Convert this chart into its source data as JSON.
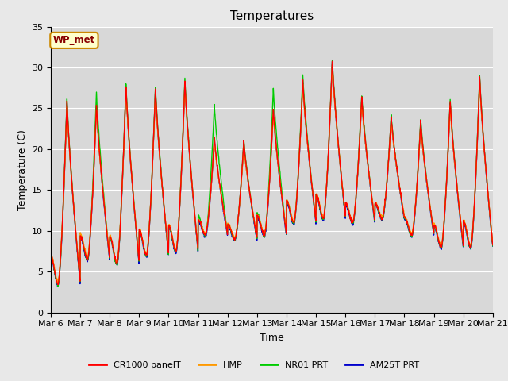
{
  "title": "Temperatures",
  "ylabel": "Temperature (C)",
  "xlabel": "Time",
  "ylim": [
    0,
    35
  ],
  "yticks": [
    0,
    5,
    10,
    15,
    20,
    25,
    30,
    35
  ],
  "x_tick_labels": [
    "Mar 6",
    "Mar 7",
    "Mar 8",
    "Mar 9",
    "Mar 10",
    "Mar 11",
    "Mar 12",
    "Mar 13",
    "Mar 14",
    "Mar 15",
    "Mar 16",
    "Mar 17",
    "Mar 18",
    "Mar 19",
    "Mar 20",
    "Mar 21"
  ],
  "annotation_text": "WP_met",
  "annotation_bg": "#ffffcc",
  "annotation_border": "#cc8800",
  "annotation_text_color": "#880000",
  "series_colors": [
    "#ff0000",
    "#ff9900",
    "#00cc00",
    "#0000cc"
  ],
  "series_labels": [
    "CR1000 panelT",
    "HMP",
    "NR01 PRT",
    "AM25T PRT"
  ],
  "line_width": 1.0,
  "plot_bg_color": "#d8d8d8",
  "grid_color": "#ffffff",
  "title_fontsize": 11,
  "axis_fontsize": 9,
  "tick_fontsize": 8,
  "legend_fontsize": 8,
  "daily_min": [
    3.5,
    6.5,
    6.0,
    7.0,
    7.5,
    9.5,
    9.0,
    9.5,
    11.0,
    11.5,
    11.0,
    11.5,
    9.5,
    8.0,
    8.0
  ],
  "daily_max": [
    26.0,
    25.5,
    28.0,
    27.5,
    28.5,
    21.5,
    21.0,
    25.0,
    28.5,
    31.0,
    26.5,
    24.0,
    23.5,
    26.0,
    29.0
  ],
  "daily_min2": [
    3.8,
    6.8,
    6.2,
    7.2,
    7.7,
    9.7,
    9.2,
    9.7,
    11.2,
    11.7,
    11.2,
    11.7,
    9.7,
    8.2,
    8.2
  ],
  "daily_max2": [
    25.5,
    25.0,
    27.5,
    27.0,
    28.0,
    21.0,
    20.5,
    24.5,
    28.0,
    30.5,
    26.0,
    23.5,
    23.0,
    25.5,
    28.5
  ],
  "daily_min3": [
    3.4,
    6.4,
    5.9,
    6.9,
    7.4,
    9.4,
    8.9,
    9.4,
    10.9,
    11.4,
    10.9,
    11.4,
    9.4,
    7.9,
    7.9
  ],
  "daily_max3": [
    26.2,
    27.0,
    28.2,
    27.8,
    28.8,
    25.5,
    21.2,
    27.5,
    29.2,
    31.2,
    26.8,
    24.2,
    23.8,
    26.2,
    29.2
  ],
  "daily_min4": [
    3.3,
    6.3,
    5.8,
    6.8,
    7.3,
    9.3,
    8.8,
    9.3,
    10.8,
    11.3,
    10.8,
    11.3,
    9.3,
    7.8,
    7.8
  ],
  "daily_max4": [
    25.8,
    25.3,
    27.8,
    27.3,
    28.3,
    21.3,
    20.8,
    24.8,
    28.3,
    30.8,
    26.3,
    23.8,
    23.3,
    25.8,
    28.8
  ]
}
